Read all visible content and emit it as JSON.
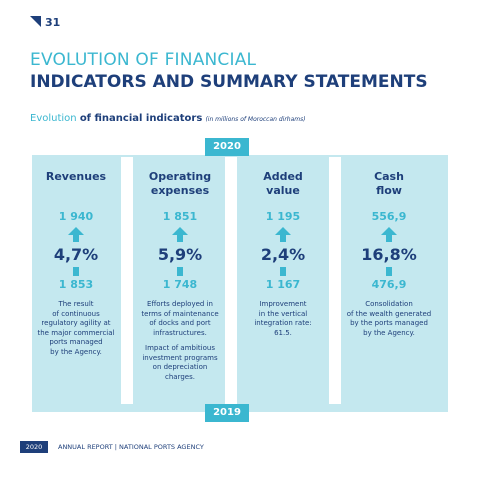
{
  "header": {
    "page_number": "31",
    "title_line1": "EVOLUTION OF FINANCIAL",
    "title_line2": "INDICATORS AND SUMMARY STATEMENTS",
    "subtitle": {
      "lead": "Evolution ",
      "bold": "of financial indicators",
      "note": "(in millions of Moroccan dirhams)"
    }
  },
  "years": {
    "top": "2020",
    "bottom": "2019"
  },
  "columns": [
    {
      "header": [
        "Revenues"
      ],
      "value_top": "1 940",
      "change": "4,7%",
      "value_bottom": "1 853",
      "description": [
        [
          "The result",
          "of continuous",
          "regulatory agility at",
          "the major commercial",
          "ports managed",
          "by the Agency."
        ]
      ]
    },
    {
      "header": [
        "Operating",
        "expenses"
      ],
      "value_top": "1 851",
      "change": "5,9%",
      "value_bottom": "1 748",
      "description": [
        [
          "Efforts deployed in",
          "terms of maintenance",
          "of docks and port",
          "infrastructures."
        ],
        [
          "Impact of ambitious",
          "investment programs",
          "on depreciation",
          "charges."
        ]
      ]
    },
    {
      "header": [
        "Added",
        "value"
      ],
      "value_top": "1 195",
      "change": "2,4%",
      "value_bottom": "1 167",
      "description": [
        [
          "Improvement",
          "in the vertical",
          "integration rate:",
          "61.5."
        ]
      ]
    },
    {
      "header": [
        "Cash",
        "flow"
      ],
      "value_top": "556,9",
      "change": "16,8%",
      "value_bottom": "476,9",
      "description": [
        [
          "Consolidation",
          "of the wealth generated",
          "by the ports managed",
          "by the Agency."
        ]
      ]
    }
  ],
  "footer": {
    "year": "2020",
    "label": "ANNUAL REPORT | NATIONAL PORTS AGENCY"
  }
}
